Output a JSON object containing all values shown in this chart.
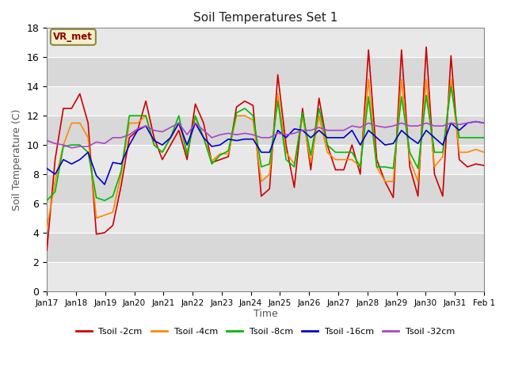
{
  "title": "Soil Temperatures Set 1",
  "xlabel": "Time",
  "ylabel": "Soil Temperature (C)",
  "ylim": [
    0,
    18
  ],
  "annotation_text": "VR_met",
  "legend_labels": [
    "Tsoil -2cm",
    "Tsoil -4cm",
    "Tsoil -8cm",
    "Tsoil -16cm",
    "Tsoil -32cm"
  ],
  "colors": [
    "#cc0000",
    "#ff8800",
    "#00bb00",
    "#0000cc",
    "#aa44cc"
  ],
  "tick_labels": [
    "Jan 17",
    "Jan 18",
    "Jan 19",
    "Jan 20",
    "Jan 21",
    "Jan 22",
    "Jan 23",
    "Jan 24",
    "Jan 25",
    "Jan 26",
    "Jan 27",
    "Jan 28",
    "Jan 29",
    "Jan 30",
    "Jan 31",
    "Feb 1"
  ],
  "tsoil_2cm": [
    2.8,
    9.0,
    12.5,
    12.5,
    13.5,
    11.5,
    3.9,
    4.0,
    4.5,
    7.2,
    10.5,
    11.0,
    13.0,
    10.5,
    9.0,
    10.0,
    11.0,
    9.0,
    12.8,
    11.5,
    8.8,
    9.0,
    9.2,
    12.6,
    13.0,
    12.7,
    6.5,
    7.0,
    14.8,
    10.0,
    7.1,
    12.5,
    8.3,
    13.2,
    10.0,
    8.3,
    8.3,
    10.0,
    8.0,
    16.5,
    9.0,
    7.5,
    6.4,
    16.5,
    8.5,
    6.5,
    16.7,
    8.0,
    6.5,
    16.1,
    9.0,
    8.5,
    8.7,
    8.6
  ],
  "tsoil_4cm": [
    4.3,
    7.5,
    10.0,
    11.5,
    11.5,
    10.5,
    5.0,
    5.2,
    5.4,
    8.0,
    11.5,
    11.5,
    12.0,
    10.0,
    9.5,
    10.5,
    11.5,
    9.5,
    11.9,
    10.5,
    8.9,
    9.4,
    9.4,
    12.0,
    12.0,
    11.7,
    7.5,
    8.0,
    13.5,
    9.5,
    8.7,
    12.0,
    8.8,
    12.0,
    9.5,
    9.0,
    9.0,
    9.0,
    8.5,
    14.5,
    8.5,
    7.5,
    7.5,
    14.5,
    9.0,
    7.5,
    14.5,
    8.5,
    9.2,
    14.5,
    9.5,
    9.5,
    9.7,
    9.5
  ],
  "tsoil_8cm": [
    6.2,
    6.8,
    9.9,
    10.0,
    10.0,
    9.5,
    6.4,
    6.2,
    6.5,
    8.2,
    12.0,
    12.0,
    12.0,
    10.0,
    9.5,
    10.5,
    12.0,
    9.3,
    12.0,
    10.5,
    8.7,
    9.3,
    9.6,
    12.2,
    12.5,
    12.0,
    8.5,
    8.7,
    13.0,
    9.0,
    8.5,
    12.2,
    9.3,
    12.5,
    10.0,
    9.5,
    9.5,
    9.5,
    8.5,
    13.3,
    8.5,
    8.5,
    8.4,
    13.3,
    9.5,
    8.4,
    13.4,
    9.5,
    9.5,
    14.0,
    10.5,
    10.5,
    10.5,
    10.5
  ],
  "tsoil_16cm": [
    8.4,
    8.0,
    9.0,
    8.7,
    9.0,
    9.5,
    7.9,
    7.3,
    8.8,
    8.7,
    10.0,
    11.0,
    11.3,
    10.3,
    10.0,
    10.5,
    11.5,
    10.0,
    11.5,
    10.5,
    9.9,
    10.0,
    10.4,
    10.3,
    10.4,
    10.4,
    9.5,
    9.5,
    11.0,
    10.5,
    11.1,
    11.0,
    10.5,
    11.0,
    10.5,
    10.5,
    10.5,
    11.0,
    10.0,
    11.0,
    10.5,
    10.0,
    10.1,
    11.0,
    10.5,
    10.1,
    11.0,
    10.5,
    10.0,
    11.5,
    11.0,
    11.5,
    11.6,
    11.5
  ],
  "tsoil_32cm": [
    10.3,
    10.1,
    10.0,
    9.8,
    9.9,
    9.9,
    10.2,
    10.1,
    10.5,
    10.5,
    10.7,
    11.1,
    11.3,
    11.0,
    10.9,
    11.2,
    11.5,
    10.7,
    11.5,
    11.0,
    10.5,
    10.7,
    10.8,
    10.7,
    10.8,
    10.7,
    10.5,
    10.5,
    10.8,
    10.7,
    10.8,
    11.0,
    11.0,
    11.2,
    11.0,
    11.0,
    11.0,
    11.3,
    11.2,
    11.5,
    11.3,
    11.2,
    11.3,
    11.5,
    11.3,
    11.3,
    11.5,
    11.3,
    11.3,
    11.5,
    11.4,
    11.5,
    11.6,
    11.5
  ],
  "bg_color": "#ffffff",
  "plot_bg_color": "#e8e8e8",
  "band_colors": [
    "#e8e8e8",
    "#d8d8d8"
  ],
  "grid_color": "#ffffff"
}
